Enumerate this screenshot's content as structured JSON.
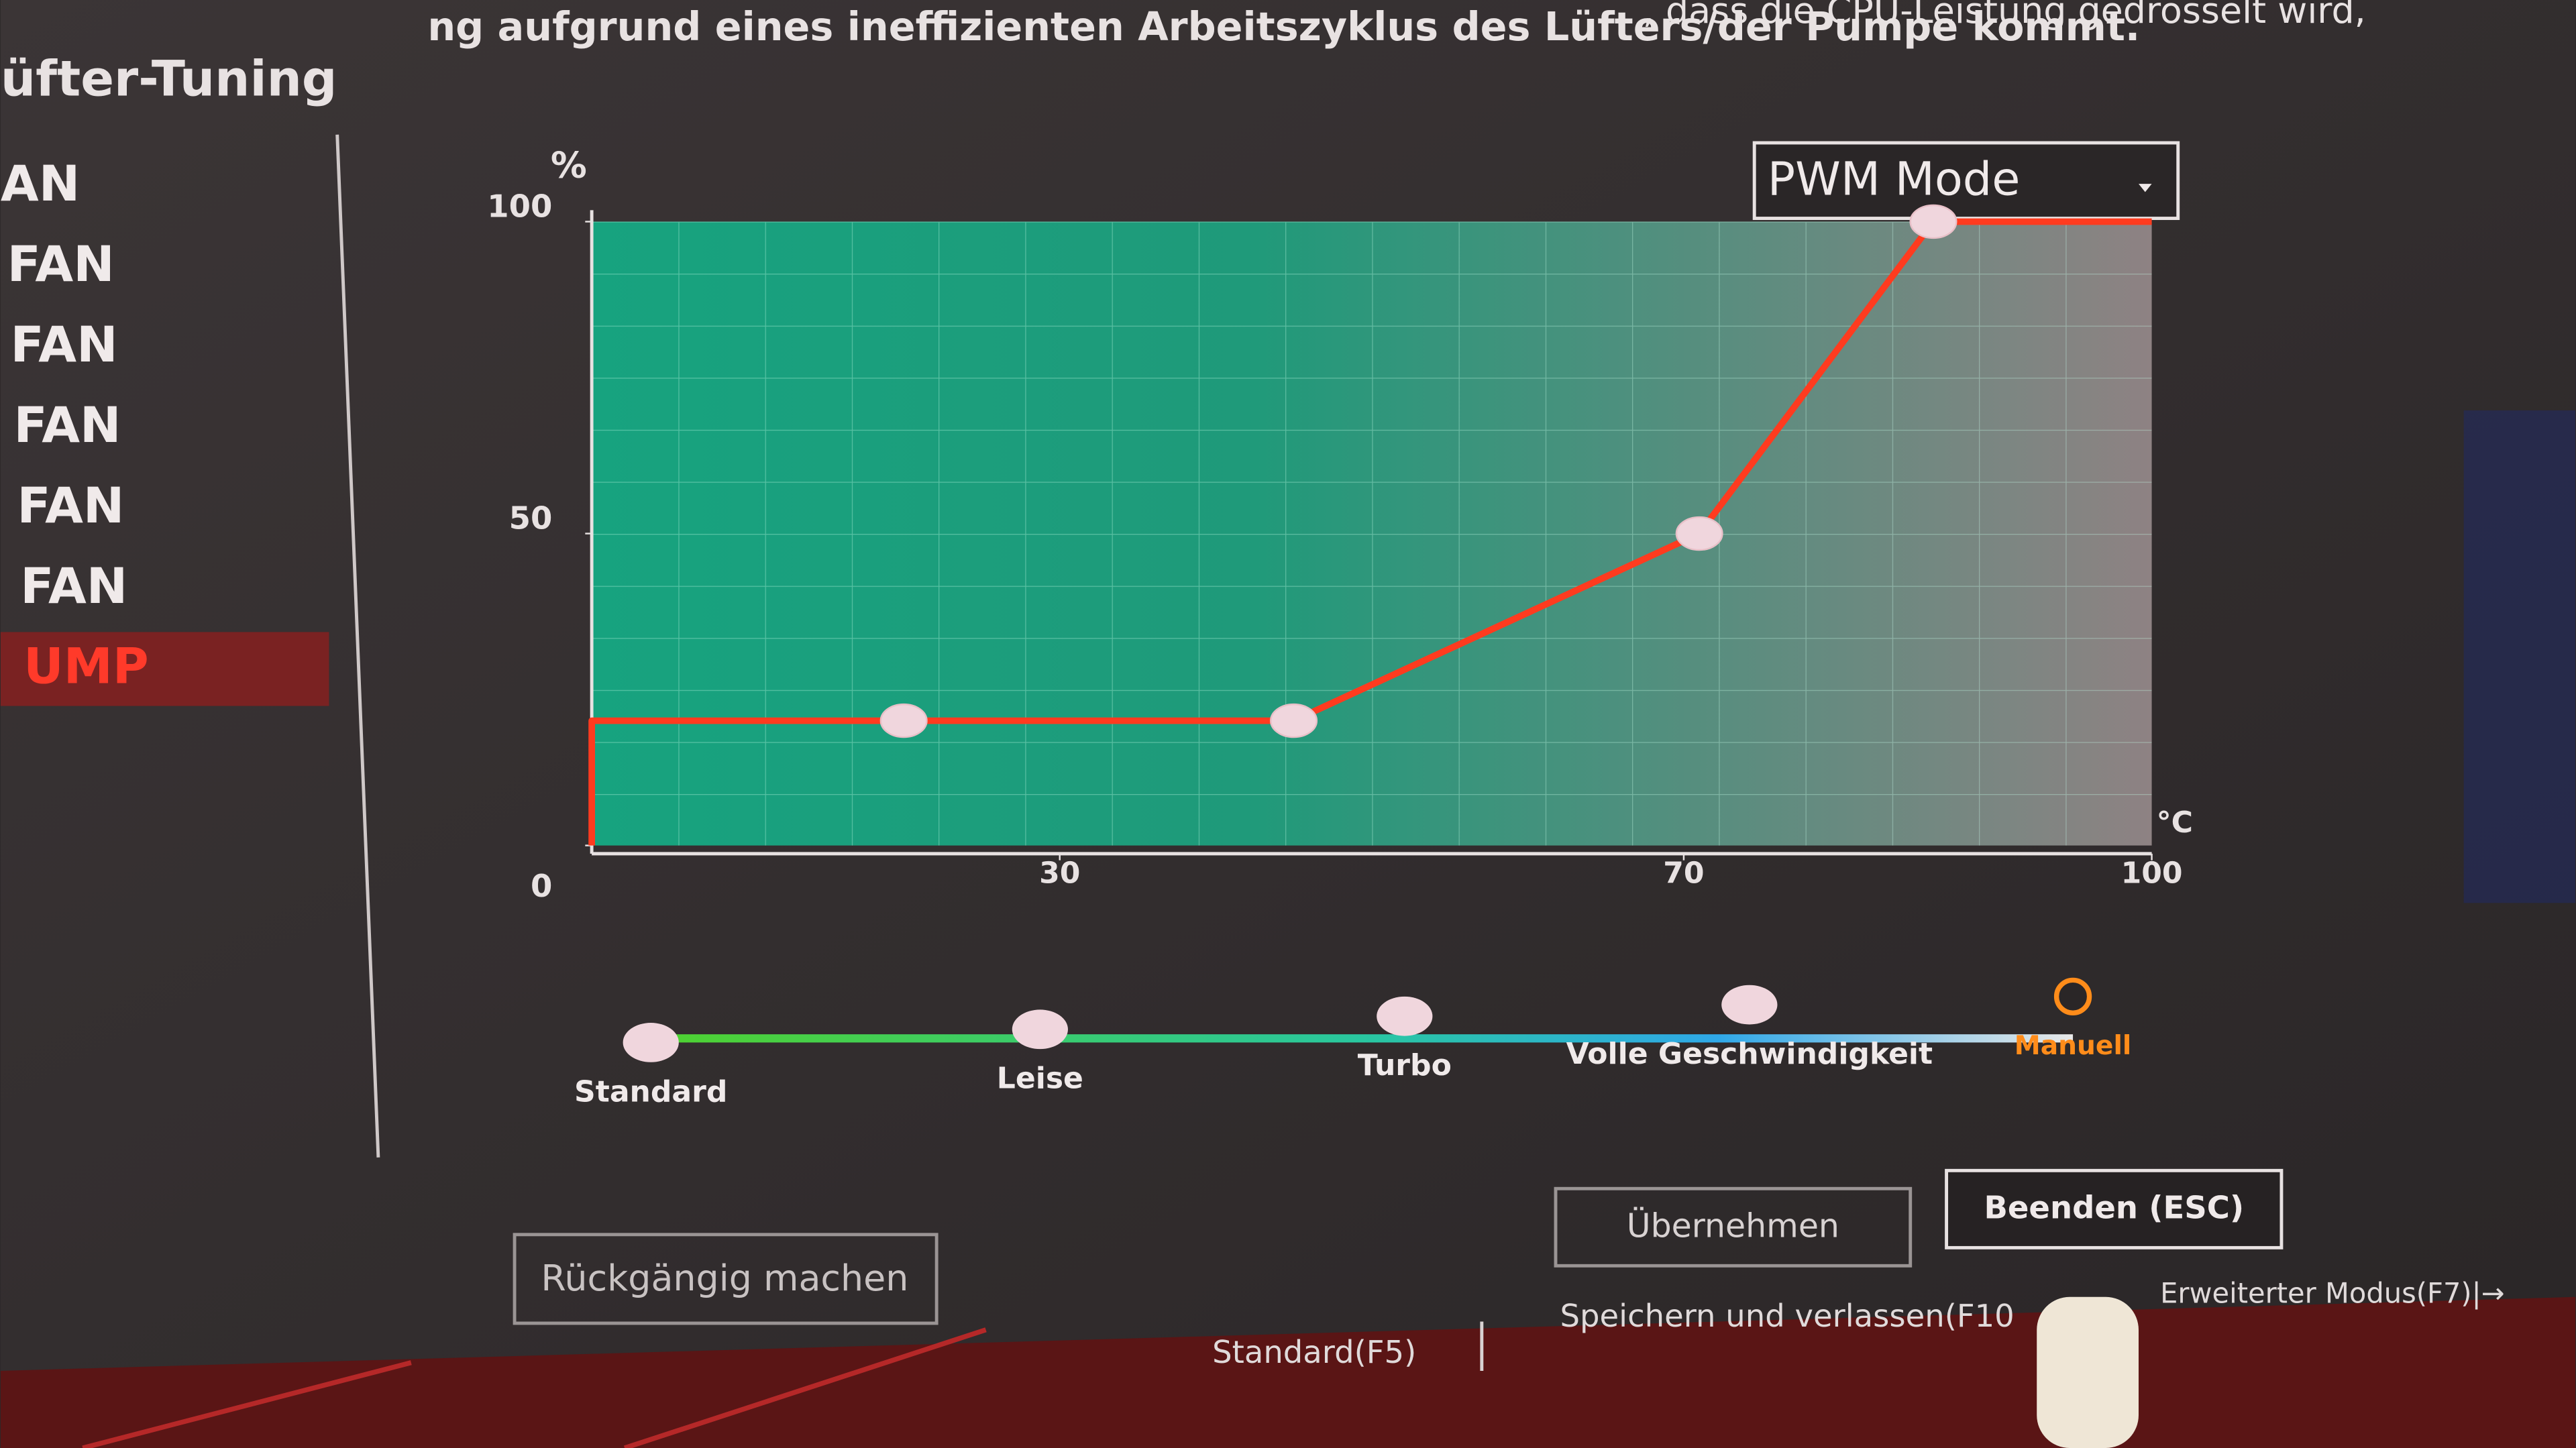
{
  "header": {
    "line1": ", dass die CPU-Leistung gedrosselt wird,",
    "line2": "ng aufgrund eines ineffizienten Arbeitszyklus des Lüfters/der Pumpe kommt."
  },
  "title": "üfter-Tuning",
  "sidebar": {
    "items": [
      "AN",
      "FAN",
      "FAN",
      "FAN",
      "FAN",
      "FAN",
      "UMP"
    ]
  },
  "dropdown": "PWM Mode",
  "chart_data": {
    "type": "line",
    "x_label": "°C",
    "y_label": "%",
    "xlim": [
      0,
      100
    ],
    "ylim": [
      0,
      100
    ],
    "xticks": [
      30,
      70,
      100
    ],
    "yticks": [
      0,
      50,
      100
    ],
    "x": [
      0,
      20,
      45,
      71,
      86,
      100
    ],
    "series": [
      {
        "name": "PUMP",
        "color": "#ff3b1f",
        "values": [
          20,
          20,
          20,
          50,
          100,
          100
        ]
      }
    ]
  },
  "profiles": {
    "items": [
      "Standard",
      "Leise",
      "Turbo",
      "Volle Geschwindigkeit",
      "Manuell"
    ]
  },
  "buttons": {
    "apply": "Übernehmen",
    "exit": "Beenden (ESC)",
    "undo": "Rückgängig machen"
  },
  "footer": {
    "items": [
      "Standard(F5)",
      "Speichern und verlassen(F10",
      "Erweiterter Modus(F7)|→"
    ]
  }
}
